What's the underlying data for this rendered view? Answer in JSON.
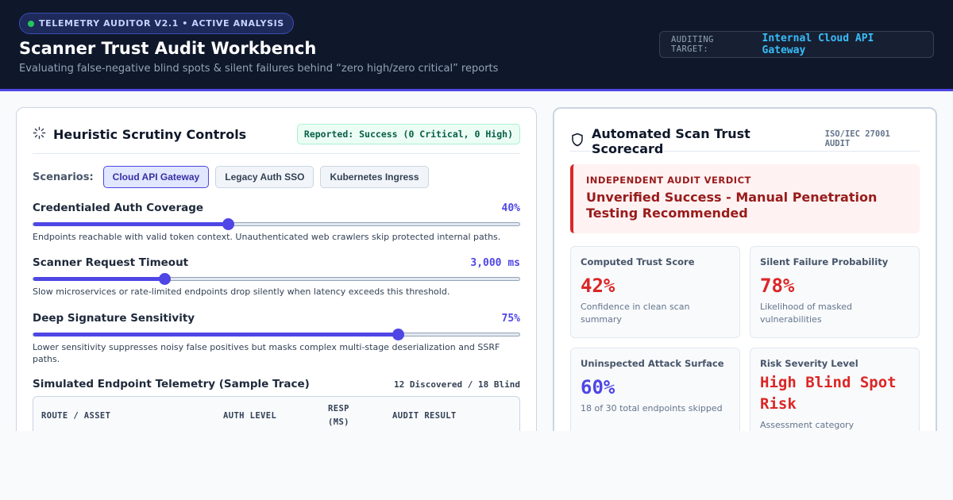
{
  "header": {
    "badge": "TELEMETRY AUDITOR V2.1 • ACTIVE ANALYSIS",
    "title": "Scanner Trust Audit Workbench",
    "subtitle": "Evaluating false-negative blind spots & silent failures behind “zero high/zero critical” reports",
    "target_label": "AUDITING TARGET:",
    "target_value": "Internal Cloud API Gateway"
  },
  "left": {
    "title": "Heuristic Scrutiny Controls",
    "reported": "Reported: Success (0 Critical, 0 High)",
    "scenarios_label": "Scenarios:",
    "scenarios": [
      "Cloud API Gateway",
      "Legacy Auth SSO",
      "Kubernetes Ingress"
    ],
    "active_scenario": "Cloud API Gateway",
    "controls": [
      {
        "name": "Credentialed Auth Coverage",
        "value": "40%",
        "level": 0.4,
        "desc": "Endpoints reachable with valid token context. Unauthenticated web crawlers skip protected internal paths."
      },
      {
        "name": "Scanner Request Timeout",
        "value": "3,000 ms",
        "level": 0.27,
        "desc": "Slow microservices or rate-limited endpoints drop silently when latency exceeds this threshold."
      },
      {
        "name": "Deep Signature Sensitivity",
        "value": "75%",
        "level": 0.75,
        "desc": "Lower sensitivity suppresses noisy false positives but masks complex multi-stage deserialization and SSRF paths."
      }
    ],
    "telemetry": {
      "title": "Simulated Endpoint Telemetry (Sample Trace)",
      "count": "12 Discovered / 18 Blind",
      "columns": [
        "ROUTE / ASSET",
        "AUTH LEVEL",
        "RESP\n(MS)",
        "AUDIT RESULT"
      ]
    }
  },
  "right": {
    "title": "Automated Scan Trust Scorecard",
    "iso": "ISO/IEC 27001 AUDIT",
    "verdict_label": "INDEPENDENT AUDIT VERDICT",
    "verdict": "Unverified Success - Manual Penetration Testing Recommended",
    "cards": [
      {
        "label": "Computed Trust Score",
        "value": "42%",
        "sub": "Confidence in clean scan summary"
      },
      {
        "label": "Silent Failure Probability",
        "value": "78%",
        "sub": "Likelihood of masked vulnerabilities"
      },
      {
        "label": "Uninspected Attack Surface",
        "value": "60%",
        "sub": "18 of 30 total endpoints skipped"
      },
      {
        "label": "Risk Severity Level",
        "value": "High Blind Spot Risk",
        "sub": "Assessment category"
      }
    ]
  },
  "colors": {
    "accent": "#4f46e5",
    "danger": "#dc2626",
    "success": "#065f46",
    "header_bg": "#0f172a",
    "target": "#38bdf8"
  }
}
